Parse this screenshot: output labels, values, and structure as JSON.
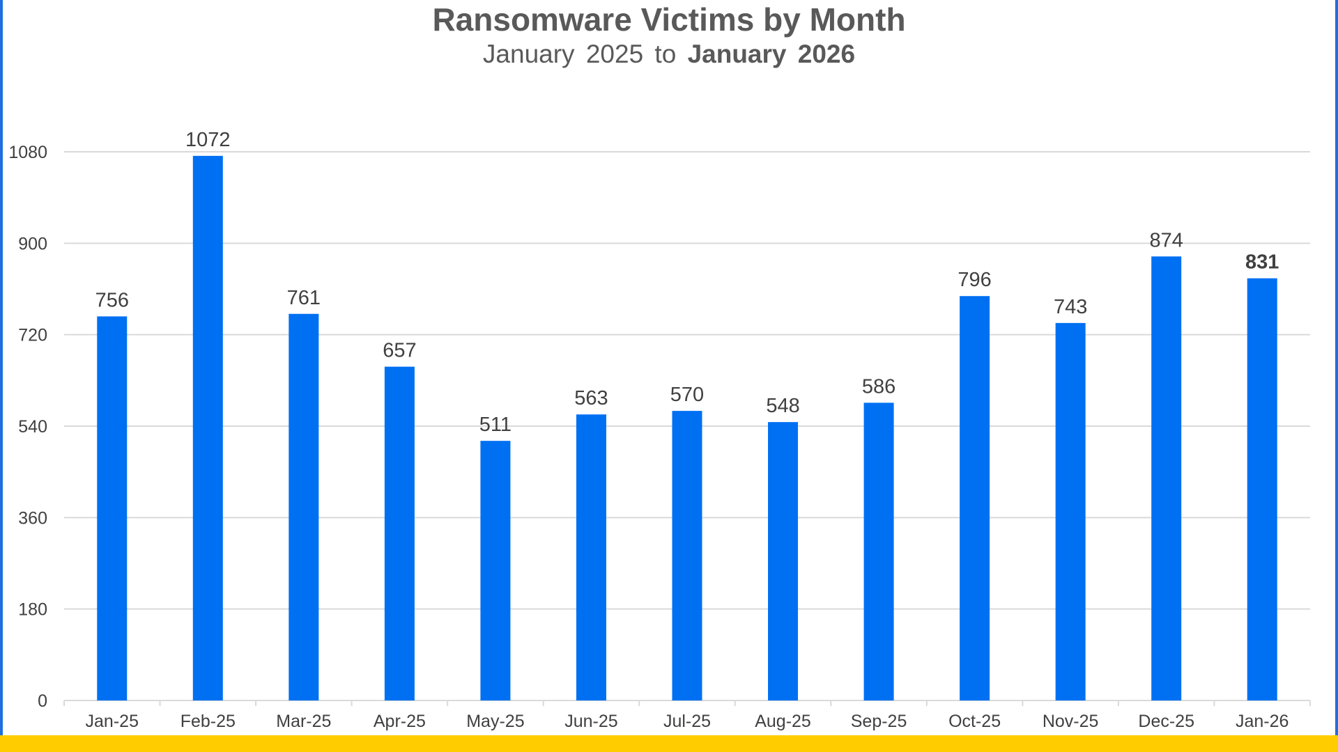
{
  "chart_data": {
    "type": "bar",
    "title": "Ransomware Victims by Month",
    "subtitle_plain": "January 2025 to",
    "subtitle_bold": "January 2026",
    "xlabel": "",
    "ylabel": "",
    "categories": [
      "Jan-25",
      "Feb-25",
      "Mar-25",
      "Apr-25",
      "May-25",
      "Jun-25",
      "Jul-25",
      "Aug-25",
      "Sep-25",
      "Oct-25",
      "Nov-25",
      "Dec-25",
      "Jan-26"
    ],
    "values": [
      756,
      1072,
      761,
      657,
      511,
      563,
      570,
      548,
      586,
      796,
      743,
      874,
      831
    ],
    "emphasized_index": 12,
    "ylim": [
      0,
      1080
    ],
    "yticks": [
      0,
      180,
      360,
      540,
      720,
      900,
      1080
    ],
    "grid": true,
    "legend": "none",
    "bar_color": "#0070f3",
    "border_color": "#1f6fe0",
    "band_color": "#ffcc00"
  }
}
